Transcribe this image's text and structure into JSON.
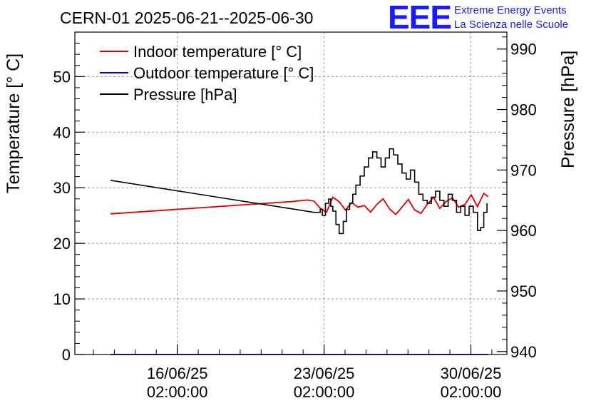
{
  "chart_data": {
    "type": "line",
    "title": "CERN-01 2025-06-21--2025-06-30",
    "brand": {
      "logo": "EEE",
      "line1": "Extreme Energy Events",
      "line2": "La Scienza nelle Scuole",
      "color": "#1a1aff"
    },
    "ylabel": "Temperature [° C]",
    "y2label": "Pressure [hPa]",
    "xlim": [
      11.2,
      31.8
    ],
    "ylim": [
      0,
      58
    ],
    "y2lim": [
      939.5,
      992.8
    ],
    "x_ticks": [
      {
        "pos": 16.0833,
        "line1": "16/06/25",
        "line2": "02:00:00"
      },
      {
        "pos": 23.0833,
        "line1": "23/06/25",
        "line2": "02:00:00"
      },
      {
        "pos": 30.0833,
        "line1": "30/06/25",
        "line2": "02:00:00"
      }
    ],
    "y_ticks": [
      0,
      10,
      20,
      30,
      40,
      50
    ],
    "y2_ticks": [
      940,
      950,
      960,
      970,
      980,
      990
    ],
    "grid": true,
    "legend_position": "top-left",
    "series": [
      {
        "name": "Indoor temperature [° C]",
        "axis": "left",
        "color": "#e00000",
        "x": [
          12.9,
          21.5,
          22.3,
          22.6,
          22.9,
          23.2,
          23.5,
          23.8,
          24.1,
          24.4,
          24.7,
          25.0,
          25.3,
          25.6,
          25.9,
          26.2,
          26.5,
          26.8,
          27.1,
          27.4,
          27.7,
          28.0,
          28.3,
          28.6,
          28.9,
          29.2,
          29.5,
          29.8,
          30.1,
          30.4,
          30.7,
          30.9
        ],
        "y": [
          25.3,
          27.5,
          27.8,
          27.6,
          26.3,
          25.6,
          28.3,
          27.5,
          26.0,
          27.3,
          26.5,
          26.8,
          25.6,
          27.0,
          28.0,
          26.2,
          25.2,
          26.5,
          27.9,
          26.0,
          25.4,
          27.0,
          28.3,
          26.3,
          27.5,
          28.2,
          26.5,
          27.0,
          28.7,
          26.6,
          29.0,
          28.4
        ]
      },
      {
        "name": "Outdoor temperature [° C]",
        "axis": "left",
        "color": "#0000e0",
        "x": [
          12.9,
          30.9
        ],
        "y": [
          0,
          0
        ]
      },
      {
        "name": "Pressure [hPa]",
        "axis": "right",
        "color": "#000000",
        "x": [
          12.9,
          22.6,
          22.9,
          23.0,
          23.15,
          23.3,
          23.4,
          23.5,
          23.65,
          23.8,
          24.0,
          24.15,
          24.3,
          24.45,
          24.6,
          24.8,
          25.0,
          25.2,
          25.4,
          25.6,
          25.8,
          26.0,
          26.2,
          26.4,
          26.6,
          26.8,
          27.0,
          27.2,
          27.4,
          27.6,
          27.8,
          28.0,
          28.2,
          28.4,
          28.6,
          28.8,
          29.0,
          29.2,
          29.4,
          29.6,
          29.8,
          30.0,
          30.2,
          30.4,
          30.55,
          30.7,
          30.85
        ],
        "y": [
          968.3,
          963.0,
          963.5,
          962.5,
          964.5,
          965.2,
          964.0,
          963.2,
          961.0,
          959.5,
          961.5,
          963.5,
          964.5,
          966.0,
          967.5,
          969.0,
          970.5,
          972.0,
          973.0,
          972.0,
          970.5,
          972.0,
          973.5,
          972.5,
          971.0,
          969.5,
          968.5,
          970.0,
          968.0,
          966.0,
          965.0,
          964.5,
          965.5,
          966.5,
          965.0,
          964.0,
          966.0,
          965.0,
          963.0,
          964.0,
          962.5,
          964.0,
          963.0,
          960.0,
          960.5,
          963.0,
          964.5
        ]
      }
    ]
  }
}
